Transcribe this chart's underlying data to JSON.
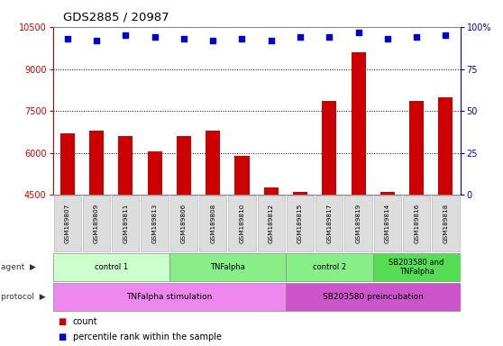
{
  "title": "GDS2885 / 20987",
  "samples": [
    "GSM189807",
    "GSM189809",
    "GSM189811",
    "GSM189813",
    "GSM189806",
    "GSM189808",
    "GSM189810",
    "GSM189812",
    "GSM189815",
    "GSM189817",
    "GSM189819",
    "GSM189814",
    "GSM189816",
    "GSM189818"
  ],
  "counts": [
    6700,
    6800,
    6600,
    6050,
    6600,
    6800,
    5900,
    4750,
    4600,
    7850,
    9600,
    4600,
    7850,
    8000
  ],
  "percentile_ranks": [
    93,
    92,
    95,
    94,
    93,
    92,
    93,
    92,
    94,
    94,
    97,
    93,
    94,
    95
  ],
  "ylim_left": [
    4500,
    10500
  ],
  "ylim_right": [
    0,
    100
  ],
  "yticks_left": [
    4500,
    6000,
    7500,
    9000,
    10500
  ],
  "yticks_right": [
    0,
    25,
    50,
    75,
    100
  ],
  "bar_color": "#cc0000",
  "dot_color": "#0000cc",
  "agent_groups": [
    {
      "label": "control 1",
      "start": 0,
      "end": 4,
      "color": "#ccffcc"
    },
    {
      "label": "TNFalpha",
      "start": 4,
      "end": 8,
      "color": "#88ee88"
    },
    {
      "label": "control 2",
      "start": 8,
      "end": 11,
      "color": "#88ee88"
    },
    {
      "label": "SB203580 and\nTNFalpha",
      "start": 11,
      "end": 14,
      "color": "#55dd55"
    }
  ],
  "protocol_groups": [
    {
      "label": "TNFalpha stimulation",
      "start": 0,
      "end": 8,
      "color": "#ee88ee"
    },
    {
      "label": "SB203580 preincubation",
      "start": 8,
      "end": 14,
      "color": "#cc55cc"
    }
  ],
  "bar_color_left": "#cc0000",
  "dot_color_right": "#0000cc"
}
